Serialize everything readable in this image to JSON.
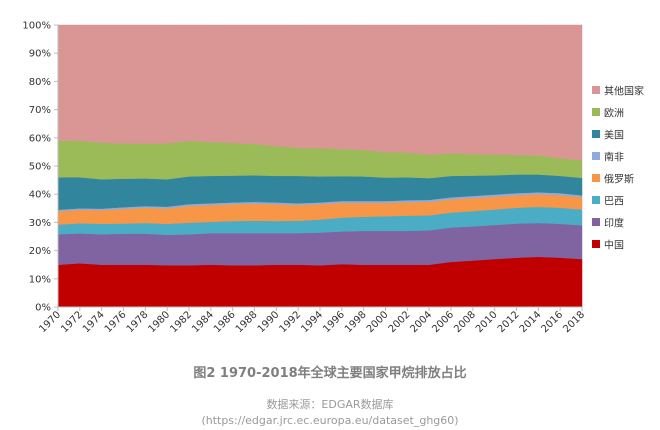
{
  "chart_data": {
    "type": "area",
    "stacked": true,
    "percent": true,
    "title": "",
    "xlabel": "",
    "ylabel": "",
    "ylim": [
      0,
      100
    ],
    "y_ticks": [
      "0%",
      "10%",
      "20%",
      "30%",
      "40%",
      "50%",
      "60%",
      "70%",
      "80%",
      "90%",
      "100%"
    ],
    "x_ticks": [
      "1970",
      "1972",
      "1974",
      "1976",
      "1978",
      "1980",
      "1982",
      "1984",
      "1986",
      "1988",
      "1990",
      "1992",
      "1994",
      "1996",
      "1998",
      "2000",
      "2002",
      "2004",
      "2006",
      "2008",
      "2010",
      "2012",
      "2014",
      "2016",
      "2018"
    ],
    "x": [
      1970,
      1972,
      1974,
      1976,
      1978,
      1980,
      1982,
      1984,
      1986,
      1988,
      1990,
      1992,
      1994,
      1996,
      1998,
      2000,
      2002,
      2004,
      2006,
      2008,
      2010,
      2012,
      2014,
      2016,
      2018
    ],
    "grid": false,
    "legend_position": "right",
    "series": [
      {
        "name": "中国",
        "color": "#c00000",
        "values": [
          15.0,
          15.5,
          15.0,
          15.0,
          15.0,
          14.8,
          14.8,
          15.0,
          14.8,
          14.8,
          15.0,
          15.0,
          14.8,
          15.2,
          15.0,
          15.0,
          15.0,
          15.0,
          16.0,
          16.5,
          17.0,
          17.5,
          17.8,
          17.5,
          17.0
        ]
      },
      {
        "name": "印度",
        "color": "#8064a2",
        "values": [
          10.8,
          10.6,
          10.8,
          11.0,
          11.0,
          10.8,
          11.0,
          11.2,
          11.4,
          11.4,
          11.2,
          11.2,
          11.6,
          11.6,
          12.0,
          12.0,
          12.0,
          12.2,
          12.2,
          12.1,
          12.1,
          12.1,
          12.0,
          12.0,
          12.0
        ]
      },
      {
        "name": "巴西",
        "color": "#4bacc6",
        "values": [
          3.4,
          3.6,
          3.7,
          3.6,
          3.8,
          3.9,
          4.1,
          4.0,
          4.3,
          4.4,
          4.3,
          4.4,
          4.6,
          4.9,
          5.0,
          5.2,
          5.4,
          5.3,
          5.3,
          5.4,
          5.5,
          5.6,
          5.7,
          5.7,
          5.6
        ]
      },
      {
        "name": "俄罗斯",
        "color": "#f79646",
        "values": [
          4.8,
          4.8,
          4.9,
          5.2,
          5.4,
          5.5,
          6.0,
          6.0,
          6.0,
          6.1,
          6.0,
          5.6,
          5.5,
          5.3,
          5.0,
          4.8,
          4.8,
          4.8,
          4.7,
          4.7,
          4.6,
          4.5,
          4.5,
          4.5,
          4.4
        ]
      },
      {
        "name": "南非",
        "color": "#8faadc",
        "values": [
          0.5,
          0.5,
          0.5,
          0.6,
          0.6,
          0.6,
          0.6,
          0.6,
          0.6,
          0.6,
          0.6,
          0.6,
          0.6,
          0.6,
          0.6,
          0.6,
          0.7,
          0.7,
          0.7,
          0.7,
          0.7,
          0.7,
          0.7,
          0.7,
          0.6
        ]
      },
      {
        "name": "美国",
        "color": "#31859c",
        "values": [
          11.5,
          11.0,
          10.4,
          10.1,
          9.8,
          9.7,
          9.8,
          9.7,
          9.5,
          9.4,
          9.4,
          9.7,
          9.2,
          8.8,
          8.7,
          8.3,
          8.1,
          7.7,
          7.6,
          7.2,
          6.8,
          6.6,
          6.3,
          6.1,
          6.2
        ]
      },
      {
        "name": "欧洲",
        "color": "#9bbb59",
        "values": [
          13.0,
          13.0,
          13.0,
          12.5,
          12.4,
          12.7,
          12.7,
          12.0,
          11.6,
          11.1,
          10.5,
          10.0,
          10.0,
          9.6,
          9.4,
          9.0,
          8.8,
          8.3,
          8.0,
          7.6,
          7.4,
          6.9,
          6.8,
          6.3,
          6.2
        ]
      },
      {
        "name": "其他国家",
        "color": "#d99694",
        "values": [
          41.0,
          41.0,
          41.7,
          42.0,
          42.0,
          42.0,
          41.0,
          41.5,
          41.8,
          42.2,
          43.0,
          43.5,
          43.7,
          44.0,
          44.3,
          45.1,
          45.2,
          46.0,
          45.5,
          45.8,
          45.9,
          46.1,
          46.2,
          47.2,
          48.0
        ]
      }
    ]
  },
  "caption": {
    "title": "图2 1970-2018年全球主要国家甲烷排放占比",
    "source": "数据来源：EDGAR数据库",
    "url": "(https://edgar.jrc.ec.europa.eu/dataset_ghg60)"
  }
}
